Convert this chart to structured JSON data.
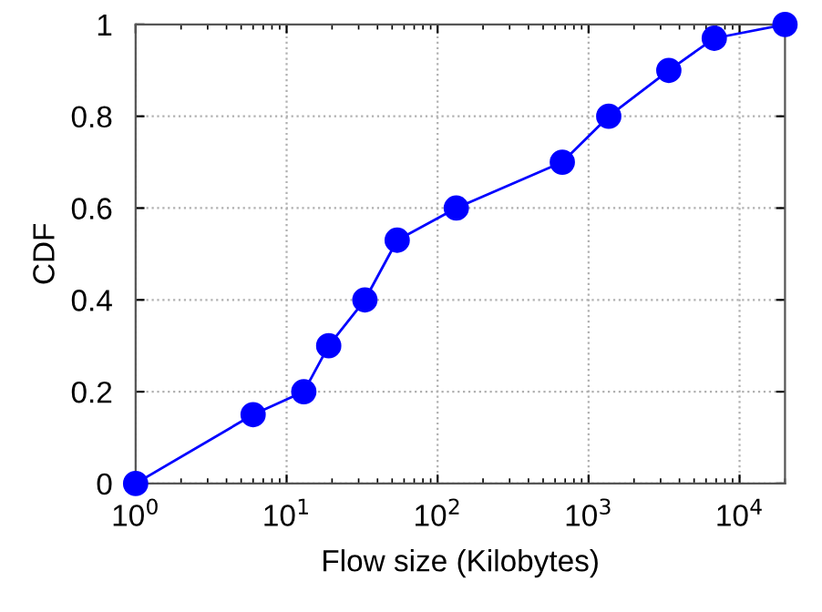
{
  "chart_data": {
    "type": "line",
    "xlabel": "Flow size (Kilobytes)",
    "ylabel": "CDF",
    "log": "x",
    "grid": true,
    "marker": "circle",
    "line_style": "solid",
    "x": [
      1,
      6,
      13,
      19,
      33,
      54,
      133,
      670,
      1360,
      3400,
      6800,
      20000
    ],
    "series": [
      {
        "color": "#0000ff",
        "values": [
          0,
          0.15,
          0.2,
          0.3,
          0.4,
          0.53,
          0.6,
          0.7,
          0.8,
          0.9,
          0.97,
          1
        ]
      }
    ],
    "xlim": [
      1,
      20000
    ],
    "ylim": [
      0,
      1
    ],
    "xticks": [
      {
        "value": 1,
        "label": "10$^{0}$"
      },
      {
        "value": 10,
        "label": "10$^{1}$"
      },
      {
        "value": 100,
        "label": "10$^{2}$"
      },
      {
        "value": 1000,
        "label": "10$^{3}$"
      },
      {
        "value": 10000,
        "label": "10$^{4}$"
      }
    ],
    "yticks": [
      0,
      0.2,
      0.4,
      0.6,
      0.8,
      1
    ]
  }
}
